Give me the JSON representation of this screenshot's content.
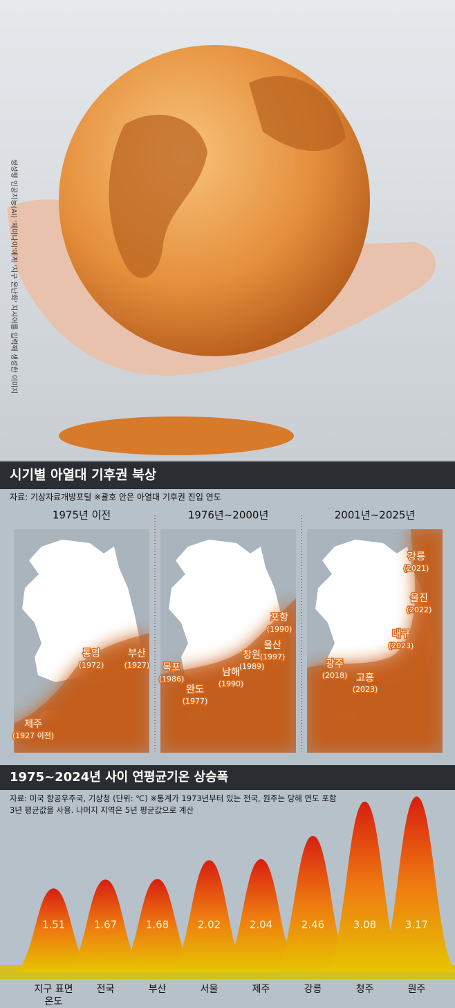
{
  "photo_caption": "생성형 인공지능(AI) '제미나이'에게 '지구 온난화' 지시어를 입력해 생성한 이미지",
  "map_section": {
    "title": "시기별 아열대 기후권 북상",
    "source": "자료: 기상자료개방포털 ※괄호 안은 아열대 기후권 진입 연도",
    "panels": [
      {
        "title": "1975년 이전",
        "labels": [
          {
            "name": "부산",
            "year": "(1927)"
          },
          {
            "name": "통영",
            "year": "(1972)"
          },
          {
            "name": "제주",
            "year": "(1927 이전)"
          }
        ]
      },
      {
        "title": "1976년~2000년",
        "labels": [
          {
            "name": "포항",
            "year": "(1990)"
          },
          {
            "name": "울산",
            "year": "(1997)"
          },
          {
            "name": "창원",
            "year": "(1989)"
          },
          {
            "name": "남해",
            "year": "(1990)"
          },
          {
            "name": "목포",
            "year": "(1986)"
          },
          {
            "name": "완도",
            "year": "(1977)"
          }
        ]
      },
      {
        "title": "2001년~2025년",
        "labels": [
          {
            "name": "강릉",
            "year": "(2021)"
          },
          {
            "name": "울진",
            "year": "(2022)"
          },
          {
            "name": "대구",
            "year": "(2023)"
          },
          {
            "name": "광주",
            "year": "(2018)"
          },
          {
            "name": "고흥",
            "year": "(2023)"
          }
        ]
      }
    ]
  },
  "chart_data": {
    "type": "bell",
    "title": "1975~2024년 사이 연평균기온 상승폭",
    "note": "자료: 미국 항공우주국, 기상청 (단위: ℃) ※통계가 1973년부터 있는 전국, 원주는 당해 연도 포함 3년 평균값을 사용. 나머지 지역은 5년 평균값으로 계산",
    "categories": [
      "지구 표면온도",
      "전국",
      "부산",
      "서울",
      "제주",
      "강릉",
      "청주",
      "원주"
    ],
    "values": [
      1.51,
      1.67,
      1.68,
      2.02,
      2.04,
      2.46,
      3.08,
      3.17
    ]
  }
}
